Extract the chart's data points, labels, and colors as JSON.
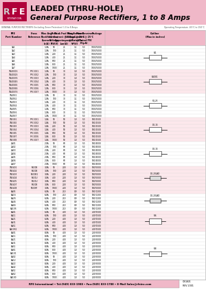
{
  "title_line1": "LEADED (THRU-HOLE)",
  "title_line2": "General Purpose Rectifiers, 1 to 8 Amps",
  "subtitle": "GENERAL PURPOSE RECTIFIERS (Including Zener Protection) 1.0 to 8 Amps",
  "subtitle2": "Operating Temperature -65°C to 150°C",
  "footer_text": "RFE International • Tel:(949) 833-1988 • Fax:(949) 833-1788 • E-Mail Sales@rfeinc.com",
  "footer_code": "C3CA01\nREV 2001",
  "pink": "#f0b8c8",
  "dark_red": "#b0003a",
  "gray_text": "#888888",
  "col_headers_line1": [
    "RFE",
    "Cross",
    "Max Avg",
    "Peak",
    "Peak Fwd Surge",
    "Max Forward",
    "Max Reverse",
    "Package",
    "Outline"
  ],
  "col_headers_line2": [
    "Part Number",
    "Reference",
    "Rectified",
    "Inverse",
    "Current @ 8.3ms",
    "Voltage @ 25°C",
    "Current @ 25°C",
    "",
    "(Max in inches)"
  ],
  "col_headers_line3": [
    "",
    "",
    "Current",
    "Voltage",
    "Superimposed",
    "@ Rated Io",
    "@ Rated PIV",
    "",
    ""
  ],
  "col_headers_line4": [
    "",
    "",
    "Io(A)",
    "PIV(V)",
    "Ism(A)",
    "VF(V)",
    "IR(μA)",
    "",
    ""
  ],
  "rows": [
    [
      "1A1",
      "",
      "1.0A",
      "50",
      "25",
      "1.1",
      "5.0",
      "1000/5000",
      "B-1"
    ],
    [
      "1A2",
      "",
      "1.0A",
      "100",
      "25",
      "1.1",
      "5.0",
      "1000/5000",
      "B-1"
    ],
    [
      "1A3",
      "",
      "1.0A",
      "200",
      "25",
      "1.1",
      "5.0",
      "1000/5000",
      "B-1"
    ],
    [
      "1A4",
      "",
      "1.0A",
      "400",
      "25",
      "1.1",
      "5.0",
      "1000/5000",
      "B-1"
    ],
    [
      "1A5",
      "",
      "1.0A",
      "600",
      "25",
      "1.1",
      "5.0",
      "1000/5000",
      "B-1"
    ],
    [
      "1A6",
      "",
      "1.0A",
      "800",
      "25",
      "1.1",
      "5.0",
      "1000/5000",
      "B-1"
    ],
    [
      "1A7",
      "",
      "1.0A",
      "1000",
      "25",
      "1.1",
      "5.0",
      "1000/5000",
      "B-1"
    ],
    [
      "1N4001S",
      "PR 1001",
      "1.0A",
      "50",
      "30",
      "1.0",
      "5.0",
      "1000/5000",
      "B-4001"
    ],
    [
      "1N4002S",
      "PR 1002",
      "1.0A",
      "100",
      "30",
      "1.0",
      "5.0",
      "1000/5000",
      "B-4001"
    ],
    [
      "1N4003S",
      "PR 1003",
      "1.0A",
      "200",
      "30",
      "1.0",
      "5.0",
      "1000/5000",
      "B-4001"
    ],
    [
      "1N4004S",
      "PR 1004",
      "1.0A",
      "400",
      "30",
      "1.0",
      "5.0",
      "1000/5000",
      "B-4001"
    ],
    [
      "1N4005S",
      "PR 1005",
      "1.0A",
      "600",
      "30",
      "1.0",
      "5.0",
      "1000/5000",
      "B-4001"
    ],
    [
      "1N4006S",
      "PR 1006",
      "1.0A",
      "800",
      "30",
      "1.0",
      "5.0",
      "1000/5000",
      "B-4001"
    ],
    [
      "1N4007S",
      "PR 1007",
      "1.0A",
      "1000",
      "30",
      "1.0",
      "5.0",
      "1000/5000",
      "B-4001"
    ],
    [
      "1N4931",
      "",
      "1.0A",
      "50",
      "30",
      "1.1",
      "5.0",
      "1000/5000",
      "B-4931"
    ],
    [
      "1N4932",
      "",
      "1.0A",
      "100",
      "30",
      "1.1",
      "5.0",
      "1000/5000",
      "B-4931"
    ],
    [
      "1N4933",
      "",
      "1.0A",
      "200",
      "30",
      "1.1",
      "5.0",
      "1000/5000",
      "B-4931"
    ],
    [
      "1N4934",
      "",
      "1.0A",
      "400",
      "30",
      "1.1",
      "5.0",
      "1000/5000",
      "B-4931"
    ],
    [
      "1N4935",
      "",
      "1.0A",
      "600",
      "30",
      "1.1",
      "5.0",
      "1000/5000",
      "B-4931"
    ],
    [
      "1N4936",
      "",
      "1.0A",
      "800",
      "30",
      "1.1",
      "5.0",
      "1000/5000",
      "B-4931"
    ],
    [
      "1N4937",
      "",
      "1.0A",
      "1000",
      "30",
      "1.1",
      "5.0",
      "1000/5000",
      "B-4931"
    ],
    [
      "1N5391",
      "PR 1001",
      "1.5A",
      "50",
      "50",
      "1.0",
      "5.0",
      "500/2500",
      "B-5391"
    ],
    [
      "1N5392",
      "PR 1002",
      "1.5A",
      "100",
      "50",
      "1.0",
      "5.0",
      "500/2500",
      "B-5391"
    ],
    [
      "1N5393",
      "PR 1003",
      "1.5A",
      "200",
      "50",
      "1.0",
      "5.0",
      "500/2500",
      "B-5391"
    ],
    [
      "1N5394",
      "PR 1004",
      "1.5A",
      "400",
      "50",
      "1.0",
      "5.0",
      "500/2500",
      "B-5391"
    ],
    [
      "1N5395",
      "PR 1005",
      "1.5A",
      "600",
      "50",
      "1.0",
      "5.0",
      "500/2500",
      "B-5391"
    ],
    [
      "1N5397",
      "FR 1006",
      "1.5A",
      "800",
      "50",
      "1.0",
      "5.0",
      "500/2500",
      "B-5391"
    ],
    [
      "1N5398",
      "PR 1007",
      "1.5A",
      "1000",
      "50",
      "1.0",
      "5.0",
      "500/2500",
      "B-5391"
    ],
    [
      "2A01",
      "",
      "2.0A",
      "50",
      "60",
      "1.0",
      "5.0",
      "500/4000",
      "B-2"
    ],
    [
      "2A02",
      "",
      "2.0A",
      "100",
      "60",
      "1.0",
      "5.0",
      "500/4000",
      "B-2"
    ],
    [
      "2A03",
      "",
      "2.0A",
      "200",
      "60",
      "1.0",
      "5.0",
      "500/4000",
      "B-2"
    ],
    [
      "2A04",
      "",
      "2.0A",
      "400",
      "60",
      "1.0",
      "5.0",
      "500/4000",
      "B-2"
    ],
    [
      "2A05",
      "",
      "2.0A",
      "600",
      "60",
      "1.0",
      "5.0",
      "500/4000",
      "B-2"
    ],
    [
      "2A06",
      "",
      "2.0A",
      "800",
      "60",
      "1.0",
      "5.0",
      "500/4000",
      "B-2"
    ],
    [
      "2A07",
      "",
      "2.0A",
      "1000",
      "60",
      "1.0",
      "5.0",
      "500/4000",
      "B-2"
    ],
    [
      "1N5401",
      "P400B",
      "3.0A",
      "50",
      "200",
      "1.0",
      "5.0",
      "500/5000",
      "DO-201AD"
    ],
    [
      "1N5402",
      "P400B",
      "3.0A",
      "100",
      "200",
      "1.0",
      "5.0",
      "500/5000",
      "DO-201AD"
    ],
    [
      "1N5403",
      "P400B1",
      "3.0A",
      "200",
      "200",
      "1.0",
      "5.0",
      "500/5000",
      "DO-201AD"
    ],
    [
      "1N5404",
      "P400U",
      "3.0A",
      "400",
      "200",
      "1.0",
      "5.0",
      "500/5000",
      "DO-201AD"
    ],
    [
      "1N5405",
      "P600U",
      "3.0A",
      "600",
      "200",
      "1.0",
      "5.0",
      "500/5000",
      "DO-201AD"
    ],
    [
      "1N5407",
      "P600B",
      "3.0A",
      "800",
      "200",
      "1.0",
      "5.0",
      "500/5000",
      "DO-201AD"
    ],
    [
      "1N5408",
      "P600M",
      "3.0A",
      "1000",
      "200",
      "1.0",
      "5.0",
      "500/5000",
      "DO-201AD"
    ],
    [
      "6A05",
      "",
      "6.0A",
      "50",
      "250",
      "0.9",
      "5.0",
      "500/1200",
      "DO201AD"
    ],
    [
      "6A1S",
      "",
      "6.0A",
      "100",
      "250",
      "0.9",
      "5.0",
      "500/1200",
      "DO201AD"
    ],
    [
      "6A2S",
      "",
      "6.0A",
      "200",
      "250",
      "0.9",
      "5.0",
      "500/1200",
      "DO201AD"
    ],
    [
      "6A4S",
      "",
      "6.0A",
      "400",
      "250",
      "0.9",
      "5.0",
      "500/1200",
      "DO201AD"
    ],
    [
      "6A6S",
      "",
      "6.0A",
      "600",
      "250",
      "0.9",
      "5.0",
      "500/1200",
      "DO201AD"
    ],
    [
      "6A10S",
      "",
      "6.0A",
      "1000",
      "250",
      "0.9",
      "5.0",
      "500/1200",
      "DO201AD"
    ],
    [
      "6A01",
      "",
      "6.0A",
      "50",
      "400",
      "1.0",
      "5.0",
      "400/1500",
      "R-6"
    ],
    [
      "6A11",
      "",
      "6.0A",
      "100",
      "400",
      "1.0",
      "5.0",
      "400/1500",
      "R-6"
    ],
    [
      "6A21",
      "",
      "6.0A",
      "200",
      "400",
      "1.0",
      "5.0",
      "400/1500",
      "R-6"
    ],
    [
      "6A31",
      "",
      "6.0A",
      "400",
      "400",
      "1.0",
      "5.0",
      "400/1500",
      "R-6"
    ],
    [
      "6A51",
      "",
      "6.0A",
      "600",
      "400",
      "1.0",
      "5.0",
      "400/1500",
      "R-6"
    ],
    [
      "6A10S1",
      "",
      "6.0A",
      "1000",
      "400",
      "1.0",
      "5.0",
      "400/1500",
      "R-6"
    ],
    [
      "8A01",
      "",
      "8.0A",
      "50",
      "400",
      "1.0",
      "5.0",
      "200/5000",
      "B-8"
    ],
    [
      "8A11",
      "",
      "8.0A",
      "100",
      "400",
      "1.0",
      "5.0",
      "200/5000",
      "B-8"
    ],
    [
      "8A21",
      "",
      "8.0A",
      "200",
      "400",
      "1.0",
      "5.0",
      "200/5000",
      "B-8"
    ],
    [
      "8A31",
      "",
      "8.0A",
      "400",
      "400",
      "1.0",
      "5.0",
      "200/5000",
      "B-8"
    ],
    [
      "8A51",
      "",
      "8.0A",
      "600",
      "400",
      "1.0",
      "5.0",
      "200/5000",
      "B-8"
    ],
    [
      "8A61",
      "",
      "8.0A",
      "800",
      "400",
      "1.0",
      "5.0",
      "200/5000",
      "B-8"
    ],
    [
      "8A101",
      "",
      "8.0A",
      "1000",
      "400",
      "1.0",
      "5.0",
      "200/5000",
      "B-8"
    ],
    [
      "8A02",
      "",
      "8.0A",
      "50",
      "400",
      "1.0",
      "5.0",
      "200/5000",
      "B-8"
    ],
    [
      "8A12",
      "",
      "8.0A",
      "100",
      "400",
      "1.0",
      "5.0",
      "200/5000",
      "B-8"
    ],
    [
      "8A22",
      "",
      "8.0A",
      "200",
      "400",
      "1.0",
      "5.0",
      "200/5000",
      "B-8"
    ],
    [
      "8A42",
      "",
      "8.0A",
      "400",
      "400",
      "1.0",
      "5.0",
      "200/5000",
      "B-8"
    ],
    [
      "8A52",
      "",
      "8.0A",
      "600",
      "400",
      "1.0",
      "5.0",
      "200/5000",
      "B-8"
    ],
    [
      "8A62",
      "",
      "8.0A",
      "800",
      "400",
      "1.0",
      "5.0",
      "200/5000",
      "B-8"
    ],
    [
      "8A100",
      "",
      "8.0A",
      "1000",
      "400",
      "1.0",
      "5.0",
      "200/5000",
      "B-8"
    ]
  ],
  "group_colors": {
    "1A": "#ffffff",
    "1N4001": "#fce8ec",
    "1N493": "#ffffff",
    "1N539": "#fce8ec",
    "2A": "#ffffff",
    "1N540": "#fce8ec",
    "6A0S": "#ffffff",
    "6A0": "#fce8ec",
    "8A": "#ffffff"
  }
}
